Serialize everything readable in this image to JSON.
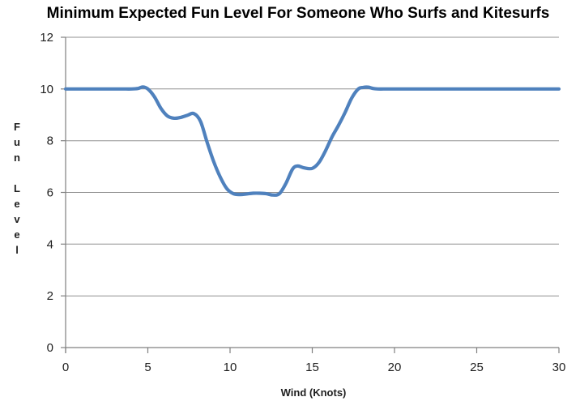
{
  "window": {
    "background": "#FFFFFF"
  },
  "colors": {
    "line": "#4F81BD",
    "gridline": "#909090",
    "axis": "#808080",
    "text": "#1F1F1F",
    "title": "#000000",
    "background": "#FFFFFF"
  },
  "chart_data": {
    "type": "line",
    "title": "Minimum Expected Fun Level For Someone Who Surfs and Kitesurfs",
    "xlabel": "Wind (Knots)",
    "ylabel": "Fun Level",
    "xlim": [
      0,
      30
    ],
    "ylim": [
      0,
      12
    ],
    "x_ticks": [
      0,
      5,
      10,
      15,
      20,
      25,
      30
    ],
    "y_ticks": [
      0,
      2,
      4,
      6,
      8,
      10,
      12
    ],
    "grid": "horizontal gridlines only",
    "legend": "none",
    "line_color": "#4F81BD",
    "line_style": "smoothed, no markers, width ~4px",
    "series": [
      {
        "x": [
          0,
          0.5,
          1,
          1.5,
          2,
          2.5,
          3,
          3.5,
          4,
          4.4,
          4.7,
          5,
          5.4,
          5.8,
          6.2,
          6.6,
          7,
          7.4,
          7.8,
          8.2,
          8.6,
          9,
          9.4,
          9.8,
          10.2,
          10.6,
          11,
          11.4,
          11.8,
          12.2,
          12.6,
          13,
          13.4,
          13.8,
          14.1,
          14.5,
          15,
          15.4,
          15.8,
          16.2,
          16.6,
          17,
          17.4,
          17.8,
          18.1,
          18.4,
          18.7,
          19,
          19.5,
          20,
          21,
          22,
          23,
          24,
          25,
          26,
          27,
          28,
          29,
          30
        ],
        "y": [
          10,
          10,
          10,
          10,
          10,
          10,
          10,
          10,
          10,
          10.02,
          10.08,
          10,
          9.7,
          9.25,
          8.95,
          8.87,
          8.9,
          8.98,
          9.05,
          8.75,
          7.95,
          7.2,
          6.6,
          6.15,
          5.95,
          5.92,
          5.94,
          5.97,
          5.97,
          5.95,
          5.9,
          5.95,
          6.35,
          6.9,
          7.02,
          6.95,
          6.93,
          7.15,
          7.6,
          8.15,
          8.6,
          9.1,
          9.65,
          10.0,
          10.06,
          10.07,
          10.02,
          10,
          10,
          10,
          10,
          10,
          10,
          10,
          10,
          10,
          10,
          10,
          10,
          10
        ]
      }
    ]
  }
}
